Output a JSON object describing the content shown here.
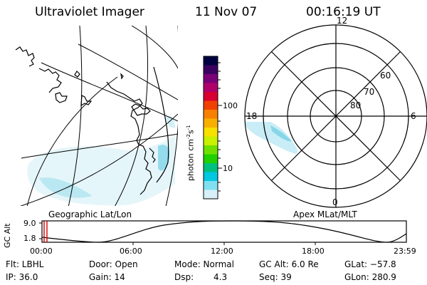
{
  "header": {
    "title": "Ultraviolet Imager",
    "date": "11 Nov 07",
    "time": "00:16:19 UT"
  },
  "colorbar": {
    "unit_label": "photon cm",
    "unit_exp1": "-2",
    "unit_mid": "s",
    "unit_exp2": "-1",
    "ticks": [
      "100",
      "10"
    ],
    "colors": [
      "#000040",
      "#3b0060",
      "#7a0078",
      "#b0006a",
      "#d80030",
      "#f04000",
      "#f88000",
      "#f8b000",
      "#f8e000",
      "#c8f000",
      "#70e000",
      "#20d000",
      "#00c080",
      "#00c8e0",
      "#80e0f0",
      "#d8f0f8"
    ]
  },
  "map_panels": {
    "left_label": "Geographic Lat/Lon",
    "right_label": "Apex MLat/MLT"
  },
  "polar": {
    "mlt_labels": [
      "12",
      "18",
      "6",
      "0"
    ],
    "lat_labels": [
      "60",
      "70",
      "80"
    ],
    "emission_color": "#8fd8ea"
  },
  "timeline": {
    "axis_title": "GC Alt",
    "y_labels": [
      "9.0",
      "1.8"
    ],
    "x_labels": [
      "00:00",
      "06:00",
      "12:00",
      "18:00",
      "23:59"
    ],
    "marker_color": "#d00000"
  },
  "status": {
    "flt": "Flt: LBHL",
    "door": "Door: Open",
    "mode": "Mode: Normal",
    "gc_alt": "GC Alt: 6.0 Re",
    "glat": "GLat: −57.8",
    "ip": "IP: 36.0",
    "gain": "Gain: 14",
    "dsp_label": "Dsp:",
    "dsp_value": "4.3",
    "seq": "Seq: 39",
    "glon": "GLon: 280.9"
  }
}
